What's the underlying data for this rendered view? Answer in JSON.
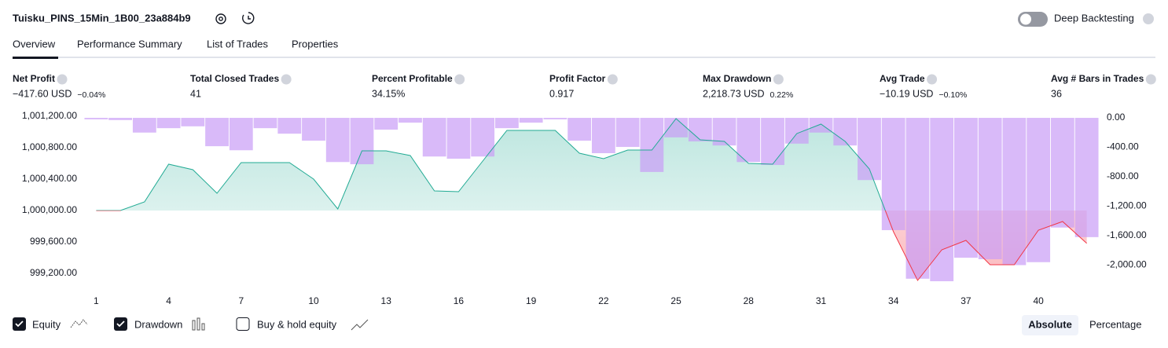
{
  "header": {
    "title": "Tuisku_PINS_15Min_1B00_23a884b9",
    "deep_backtesting": "Deep Backtesting"
  },
  "tabs": [
    "Overview",
    "Performance Summary",
    "List of Trades",
    "Properties"
  ],
  "metrics": [
    {
      "label": "Net Profit",
      "value": "−417.60 USD",
      "sub": "−0.04%",
      "color": "#f23645"
    },
    {
      "label": "Total Closed Trades",
      "value": "41",
      "color": "#131722"
    },
    {
      "label": "Percent Profitable",
      "value": "34.15%",
      "color": "#089981"
    },
    {
      "label": "Profit Factor",
      "value": "0.917",
      "color": "#f23645"
    },
    {
      "label": "Max Drawdown",
      "value": "2,218.73 USD",
      "sub": "0.22%",
      "color": "#f23645"
    },
    {
      "label": "Avg Trade",
      "value": "−10.19 USD",
      "sub": "−0.10%",
      "color": "#f23645"
    },
    {
      "label": "Avg # Bars in Trades",
      "value": "36",
      "color": "#131722"
    }
  ],
  "chart_data": {
    "type": "combo",
    "x": [
      1,
      2,
      3,
      4,
      5,
      6,
      7,
      8,
      9,
      10,
      11,
      12,
      13,
      14,
      15,
      16,
      17,
      18,
      19,
      20,
      21,
      22,
      23,
      24,
      25,
      26,
      27,
      28,
      29,
      30,
      31,
      32,
      33,
      34,
      35,
      36,
      37,
      38,
      39,
      40,
      41,
      42
    ],
    "xlim": [
      0.5,
      42.5
    ],
    "xticks": [
      1,
      4,
      7,
      10,
      13,
      16,
      19,
      22,
      25,
      28,
      31,
      34,
      37,
      40
    ],
    "ylim": [
      998980,
      1001280
    ],
    "yticks": [
      {
        "value": 999200,
        "label": "999,200.00"
      },
      {
        "value": 999600,
        "label": "999,600.00"
      },
      {
        "value": 1000000,
        "label": "1,000,000.00"
      },
      {
        "value": 1000400,
        "label": "1,000,400.00"
      },
      {
        "value": 1000800,
        "label": "1,000,800.00"
      },
      {
        "value": 1001200,
        "label": "1,001,200.00"
      }
    ],
    "y2lim": [
      -2347,
      107
    ],
    "y2ticks": [
      {
        "value": 0,
        "label": "0.00"
      },
      {
        "value": -400,
        "label": "-400.00"
      },
      {
        "value": -800,
        "label": "-800.00"
      },
      {
        "value": -1200,
        "label": "-1,200.00"
      },
      {
        "value": -1600,
        "label": "-1,600.00"
      },
      {
        "value": -2000,
        "label": "-2,000.00"
      }
    ],
    "series": [
      {
        "name": "Equity",
        "type": "line",
        "color": "#22ab94",
        "values": [
          1000000,
          1000000,
          1000110,
          1000590,
          1000520,
          1000220,
          1000610,
          1000610,
          1000610,
          1000400,
          1000020,
          1000760,
          1000760,
          1000700,
          1000250,
          1000240,
          1000630,
          1001020,
          1001020,
          1001020,
          1000730,
          1000660,
          1000770,
          1000770,
          1001170,
          1000900,
          1000880,
          1000600,
          1000590,
          1000980,
          1001100,
          1000880,
          1000530,
          999730,
          999110,
          999500,
          999620,
          999310,
          999310,
          999750,
          999860,
          999582
        ]
      },
      {
        "name": "Drawdown",
        "type": "bar",
        "axis": "y2",
        "color": "#c99cf7",
        "values": [
          -20,
          -30,
          -200,
          -140,
          -115,
          -385,
          -440,
          -140,
          -215,
          -310,
          -600,
          -630,
          -160,
          -65,
          -525,
          -555,
          -525,
          -140,
          -65,
          -20,
          -310,
          -480,
          -395,
          -735,
          -265,
          -320,
          -375,
          -600,
          -640,
          -350,
          -200,
          -375,
          -845,
          -1525,
          -2185,
          -2219,
          -1900,
          -1920,
          -2000,
          -1960,
          -1490,
          -1620
        ]
      }
    ]
  },
  "controls": {
    "buy_hold": "Buy & hold equity",
    "absolute": "Absolute",
    "percentage": "Percentage"
  }
}
